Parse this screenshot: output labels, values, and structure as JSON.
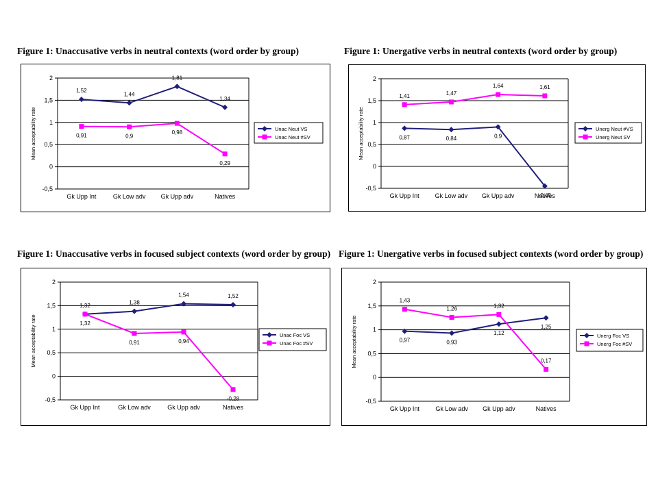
{
  "colors": {
    "navy": "#1f1f7a",
    "magenta": "#ff00ff"
  },
  "chart_data": [
    {
      "type": "line",
      "title": "Figure 1: Unaccusative verbs in neutral contexts (word order by group)",
      "ylabel": "Mean acceptability rate",
      "categories": [
        "Gk Upp Int",
        "Gk Low adv",
        "Gk Upp adv",
        "Natives"
      ],
      "y_ticks": [
        "2",
        "1,5",
        "1",
        "0,5",
        "0",
        "-0,5"
      ],
      "ylim": [
        -0.5,
        2
      ],
      "grid": true,
      "legend_position": "right",
      "series": [
        {
          "name": "Unac Neut VS",
          "color": "#1f1f7a",
          "marker": "diamond",
          "values": [
            1.52,
            1.44,
            1.81,
            1.34
          ],
          "labels": [
            "1,52",
            "1,44",
            "1,81",
            "1,34"
          ],
          "label_pos": "above"
        },
        {
          "name": "Unac Neut #SV",
          "color": "#ff00ff",
          "marker": "square",
          "values": [
            0.91,
            0.9,
            0.98,
            0.29
          ],
          "labels": [
            "0,91",
            "0,9",
            "0,98",
            "0,29"
          ],
          "label_pos": "below"
        }
      ]
    },
    {
      "type": "line",
      "title": "Figure 1: Unergative verbs in neutral contexts (word order by group)",
      "ylabel": "Mean acceptability rate",
      "categories": [
        "Gk Upp Int",
        "Gk Low adv",
        "Gk Upp adv",
        "Natives"
      ],
      "y_ticks": [
        "2",
        "1,5",
        "1",
        "0,5",
        "0",
        "-0,5"
      ],
      "ylim": [
        -0.5,
        2
      ],
      "grid": true,
      "legend_position": "right",
      "series": [
        {
          "name": "Unerg Neut #VS",
          "color": "#1f1f7a",
          "marker": "diamond",
          "values": [
            0.87,
            0.84,
            0.9,
            -0.45
          ],
          "labels": [
            "0,87",
            "0,84",
            "0,9",
            "-0,45"
          ],
          "label_pos": "below"
        },
        {
          "name": "Unerg Neut SV",
          "color": "#ff00ff",
          "marker": "square",
          "values": [
            1.41,
            1.47,
            1.64,
            1.61
          ],
          "labels": [
            "1,41",
            "1,47",
            "1,64",
            "1,61"
          ],
          "label_pos": "above"
        }
      ]
    },
    {
      "type": "line",
      "title": "Figure 1: Unaccusative verbs in focused subject contexts (word order by group)",
      "ylabel": "Mean acceptability rate",
      "categories": [
        "Gk Upp Int",
        "Gk Low adv",
        "Gk Upp adv",
        "Natives"
      ],
      "y_ticks": [
        "2",
        "1,5",
        "1",
        "0,5",
        "0",
        "-0,5"
      ],
      "ylim": [
        -0.5,
        2
      ],
      "grid": true,
      "legend_position": "right",
      "series": [
        {
          "name": "Unac Foc VS",
          "color": "#1f1f7a",
          "marker": "diamond",
          "values": [
            1.32,
            1.38,
            1.54,
            1.52
          ],
          "labels": [
            "1,32",
            "1,38",
            "1,54",
            "1,52"
          ],
          "label_pos": "above"
        },
        {
          "name": "Unac Foc #SV",
          "color": "#ff00ff",
          "marker": "square",
          "values": [
            1.32,
            0.91,
            0.94,
            -0.28
          ],
          "labels": [
            "1,32",
            "0,91",
            "0,94",
            "-0,28"
          ],
          "label_pos": "below"
        }
      ]
    },
    {
      "type": "line",
      "title": "Figure 1: Unergative verbs in focused subject contexts (word order by group)",
      "ylabel": "Mean acceptability rate",
      "categories": [
        "Gk Upp Int",
        "Gk Low adv",
        "Gk Upp adv",
        "Natives"
      ],
      "y_ticks": [
        "2",
        "1,5",
        "1",
        "0,5",
        "0",
        "-0,5"
      ],
      "ylim": [
        -0.5,
        2
      ],
      "grid": true,
      "legend_position": "right",
      "series": [
        {
          "name": "Unerg Foc VS",
          "color": "#1f1f7a",
          "marker": "diamond",
          "values": [
            0.97,
            0.93,
            1.12,
            1.25
          ],
          "labels": [
            "0,97",
            "0,93",
            "1,12",
            "1,25"
          ],
          "label_pos": "below"
        },
        {
          "name": "Unerg Foc #SV",
          "color": "#ff00ff",
          "marker": "square",
          "values": [
            1.43,
            1.26,
            1.32,
            0.17
          ],
          "labels": [
            "1,43",
            "1,26",
            "1,32",
            "0,17"
          ],
          "label_pos": "above"
        }
      ]
    }
  ]
}
